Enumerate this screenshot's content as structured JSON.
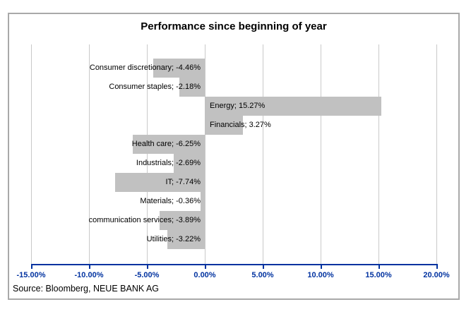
{
  "title": "Performance since beginning of year",
  "source": "Source: Bloomberg, NEUE BANK AG",
  "colors": {
    "bar": "#c1c1c1",
    "gridline": "#c9c9c9",
    "axis": "#0032a0",
    "frame_border": "#a9a9a9",
    "label_text": "#000000"
  },
  "chart_data": {
    "type": "bar",
    "orientation": "horizontal",
    "title": "Performance since beginning of year",
    "categories": [
      "Consumer discretionary",
      "Consumer staples",
      "Energy",
      "Financials",
      "Health care",
      "Industrials",
      "IT",
      "Materials",
      "communication services",
      "Utilities"
    ],
    "values": [
      -4.46,
      -2.18,
      15.27,
      3.27,
      -6.25,
      -2.69,
      -7.74,
      -0.36,
      -3.89,
      -3.22
    ],
    "data_labels": [
      "Consumer discretionary; -4.46%",
      "Consumer staples; -2.18%",
      "Energy; 15.27%",
      "Financials; 3.27%",
      "Health care; -6.25%",
      "Industrials; -2.69%",
      "IT; -7.74%",
      "Materials; -0.36%",
      "communication services; -3.89%",
      "Utilities; -3.22%"
    ],
    "x_axis": {
      "range": [
        -15,
        20
      ],
      "tick_step": 5,
      "ticks": [
        {
          "value": -15,
          "label": "-15.00%"
        },
        {
          "value": -10,
          "label": "-10.00%"
        },
        {
          "value": -5,
          "label": "-5.00%"
        },
        {
          "value": 0,
          "label": "0.00%"
        },
        {
          "value": 5,
          "label": "5.00%"
        },
        {
          "value": 10,
          "label": "10.00%"
        },
        {
          "value": 15,
          "label": "15.00%"
        },
        {
          "value": 20,
          "label": "20.00%"
        }
      ]
    },
    "grid": "vertical-gridlines-on",
    "legend": "none"
  }
}
